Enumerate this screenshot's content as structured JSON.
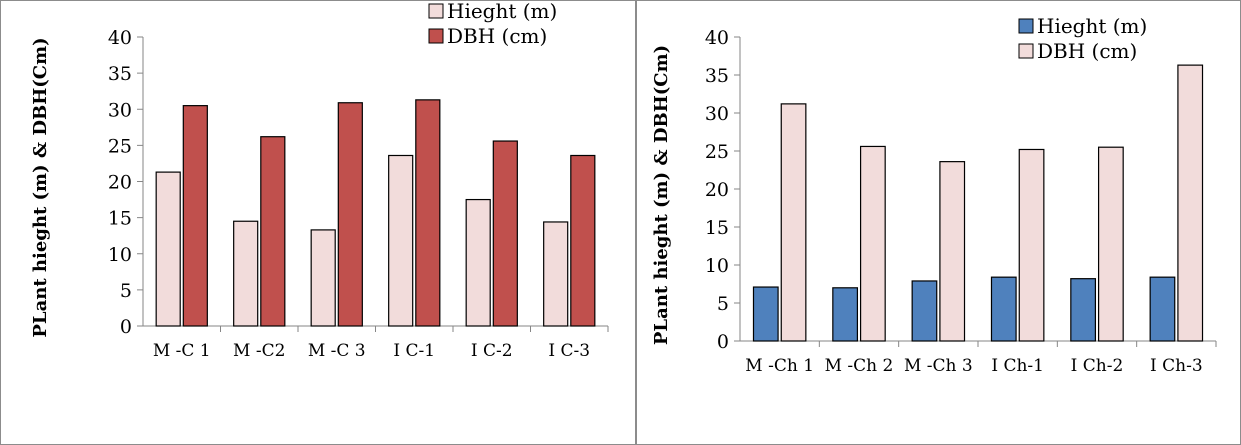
{
  "chart_data": [
    {
      "type": "bar",
      "title": "",
      "xlabel": "",
      "ylabel": "PLant hieght (m) & DBH(Cm)",
      "ylim": [
        0,
        40
      ],
      "yticks": [
        0,
        5,
        10,
        15,
        20,
        25,
        30,
        35,
        40
      ],
      "grid": false,
      "legend_position": "top-right",
      "categories": [
        "M -C 1",
        "M -C2",
        "M -C 3",
        "I C-1",
        "I C-2",
        "I C-3"
      ],
      "series": [
        {
          "name": "Hieght (m)",
          "color": "#f2dcdb",
          "values": [
            21.3,
            14.5,
            13.3,
            23.6,
            17.5,
            14.4
          ]
        },
        {
          "name": "DBH (cm)",
          "color": "#c0504d",
          "values": [
            30.5,
            26.2,
            30.9,
            31.3,
            25.6,
            23.6
          ]
        }
      ]
    },
    {
      "type": "bar",
      "title": "",
      "xlabel": "",
      "ylabel": "PLant hieght (m) & DBH(Cm)",
      "ylim": [
        0,
        40
      ],
      "yticks": [
        0,
        5,
        10,
        15,
        20,
        25,
        30,
        35,
        40
      ],
      "grid": false,
      "legend_position": "top-right",
      "categories": [
        "M -Ch 1",
        "M -Ch 2",
        "M -Ch 3",
        "I Ch-1",
        "I Ch-2",
        "I Ch-3"
      ],
      "series": [
        {
          "name": "Hieght (m)",
          "color": "#4f81bd",
          "values": [
            7.1,
            7.0,
            7.9,
            8.4,
            8.2,
            8.4
          ]
        },
        {
          "name": "DBH (cm)",
          "color": "#f2dcdb",
          "values": [
            31.2,
            25.6,
            23.6,
            25.2,
            25.5,
            36.3
          ]
        }
      ]
    }
  ]
}
